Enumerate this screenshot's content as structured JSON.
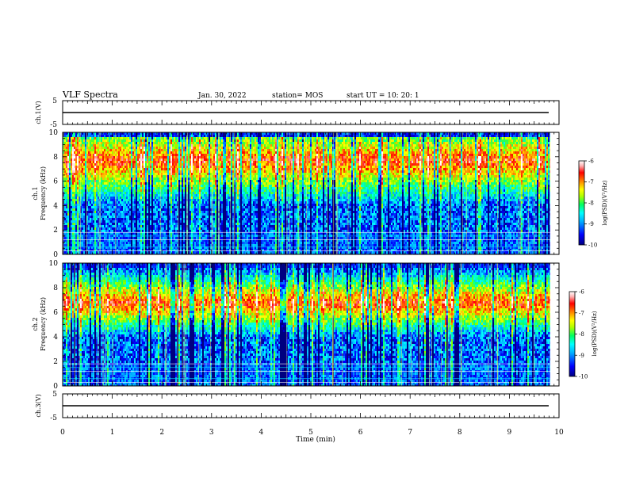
{
  "header": {
    "title": "VLF Spectra",
    "date": "Jan. 30, 2022",
    "station": "station= MOS",
    "start": "start  UT  =   10: 20: 1"
  },
  "chart_data": [
    {
      "type": "line",
      "panel": "ch1-waveform",
      "ylabel": "ch.1(V)",
      "ylim": [
        -5,
        5
      ],
      "yticks": [
        "5",
        "-5"
      ],
      "xlim": [
        0,
        10
      ],
      "series": [
        {
          "values_approx": [
            -0.3,
            -0.3
          ]
        }
      ]
    },
    {
      "type": "heatmap",
      "panel": "ch1-spectrogram",
      "ylabel_top": "ch.1",
      "ylabel": "Frequency (kHz)",
      "ylim": [
        0,
        10
      ],
      "yticks": [
        "0",
        "2",
        "4",
        "6",
        "8",
        "10"
      ],
      "xlim": [
        0,
        10
      ],
      "xunit": "min",
      "data_end_min": 9.82,
      "colorbar": {
        "label": "log(PSD)(V²/Hz)",
        "range": [
          -10,
          -6
        ],
        "ticks": [
          "-6",
          "-7",
          "-8",
          "-9",
          "-10"
        ]
      },
      "intense_band_khz": [
        6.0,
        9.3
      ],
      "line_noise_khz": [
        0.3,
        0.6,
        1.2,
        1.5,
        1.8
      ]
    },
    {
      "type": "heatmap",
      "panel": "ch2-spectrogram",
      "ylabel_top": "ch.2",
      "ylabel": "Frequency (kHz)",
      "ylim": [
        0,
        10
      ],
      "yticks": [
        "0",
        "2",
        "4",
        "6",
        "8",
        "10"
      ],
      "xlim": [
        0,
        10
      ],
      "xunit": "min",
      "data_end_min": 9.82,
      "colorbar": {
        "label": "log(PSD)(V²/Hz)",
        "range": [
          -10,
          -6
        ],
        "ticks": [
          "-6",
          "-7",
          "-8",
          "-9",
          "-10"
        ]
      },
      "intense_band_khz": [
        5.5,
        8.0
      ],
      "line_noise_khz": [
        0.3,
        0.6,
        1.2,
        1.5,
        1.8
      ]
    },
    {
      "type": "line",
      "panel": "ch3-waveform",
      "ylabel": "ch.3(V)",
      "ylim": [
        -5,
        5
      ],
      "yticks": [
        "5",
        "-5"
      ],
      "xlim": [
        0,
        10
      ],
      "xlabel": "Time  (min)",
      "xticks": [
        "0",
        "1",
        "2",
        "3",
        "4",
        "5",
        "6",
        "7",
        "8",
        "9",
        "10"
      ],
      "series": [
        {
          "values_approx": [
            -0.3,
            -0.3
          ]
        }
      ]
    }
  ],
  "colors": {
    "colormap": [
      "#000080",
      "#0000ff",
      "#00a0ff",
      "#00ffff",
      "#00ff80",
      "#80ff00",
      "#ffff00",
      "#ff8000",
      "#ff0000",
      "#ffd0d0",
      "#ffffff"
    ],
    "axes": "#000000",
    "background": "#ffffff"
  }
}
